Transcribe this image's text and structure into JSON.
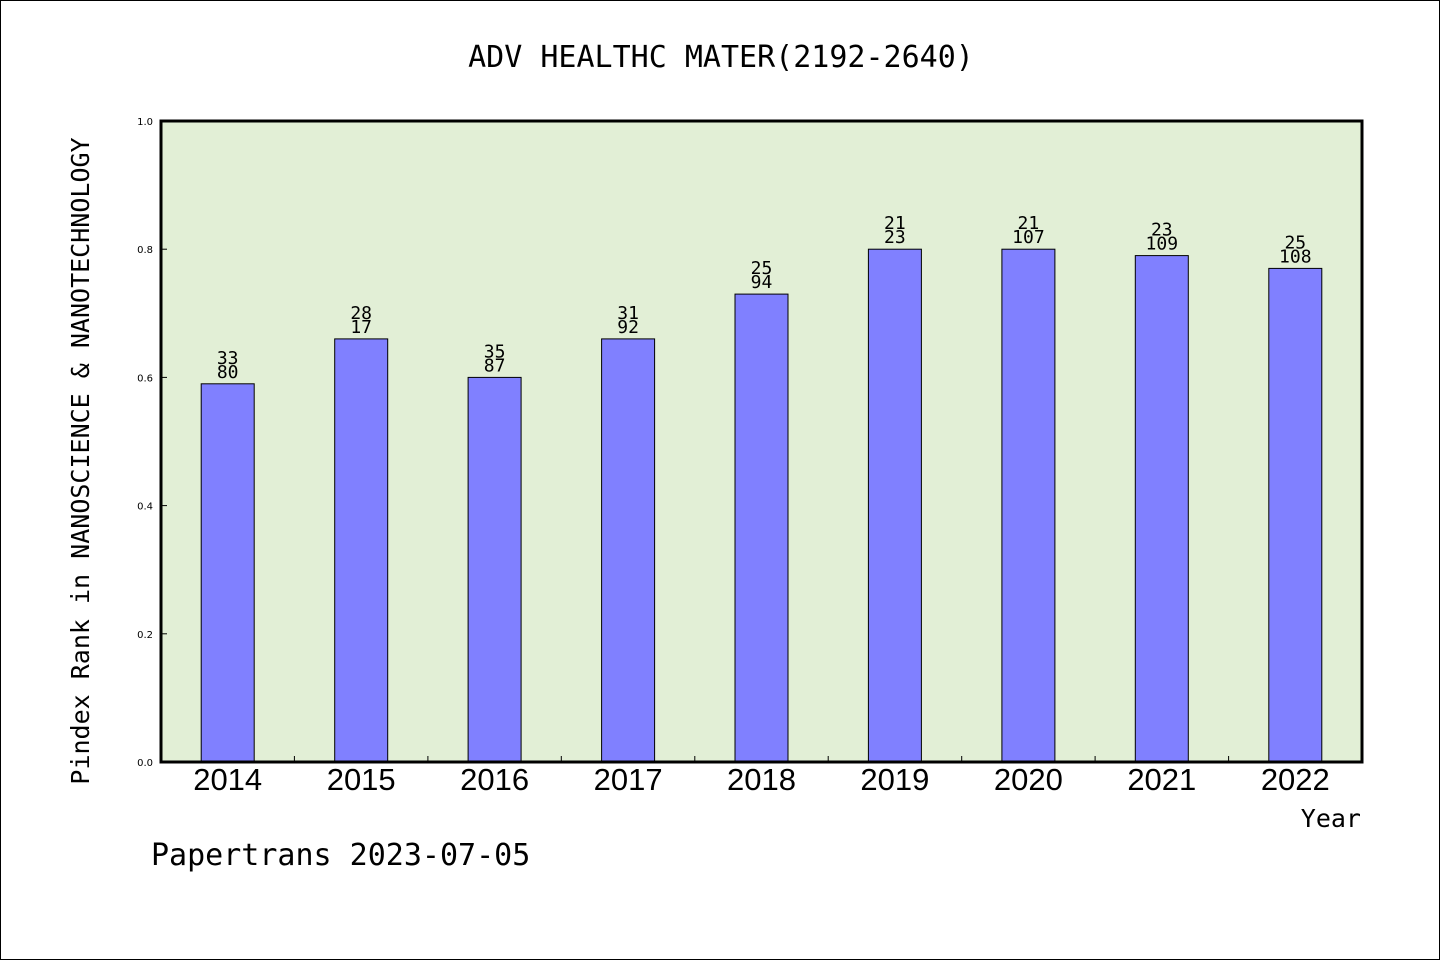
{
  "chart_data": {
    "type": "bar",
    "title": "ADV HEALTHC MATER(2192-2640)",
    "xlabel": "Year",
    "ylabel": "Pindex Rank in NANOSCIENCE & NANOTECHNOLOGY",
    "ylim": [
      0,
      1.0
    ],
    "yticks": [
      "0.0",
      "0.2",
      "0.4",
      "0.6",
      "0.8",
      "1.0"
    ],
    "categories": [
      "2014",
      "2015",
      "2016",
      "2017",
      "2018",
      "2019",
      "2020",
      "2021",
      "2022"
    ],
    "values": [
      0.59,
      0.66,
      0.6,
      0.66,
      0.73,
      0.8,
      0.8,
      0.79,
      0.77
    ],
    "rank_labels": [
      "33",
      "28",
      "35",
      "31",
      "25",
      "21",
      "21",
      "23",
      "25"
    ],
    "total_labels": [
      "80",
      "17",
      "87",
      "92",
      "94",
      "23",
      "107",
      "109",
      "108"
    ],
    "grid": false,
    "legend": "none",
    "colors": {
      "plot_background": "#e2efd6",
      "bar_fill": "#8080ff",
      "bar_stroke": "#000000",
      "axis": "#000000"
    }
  },
  "footer": {
    "text": "Papertrans 2023-07-05"
  }
}
